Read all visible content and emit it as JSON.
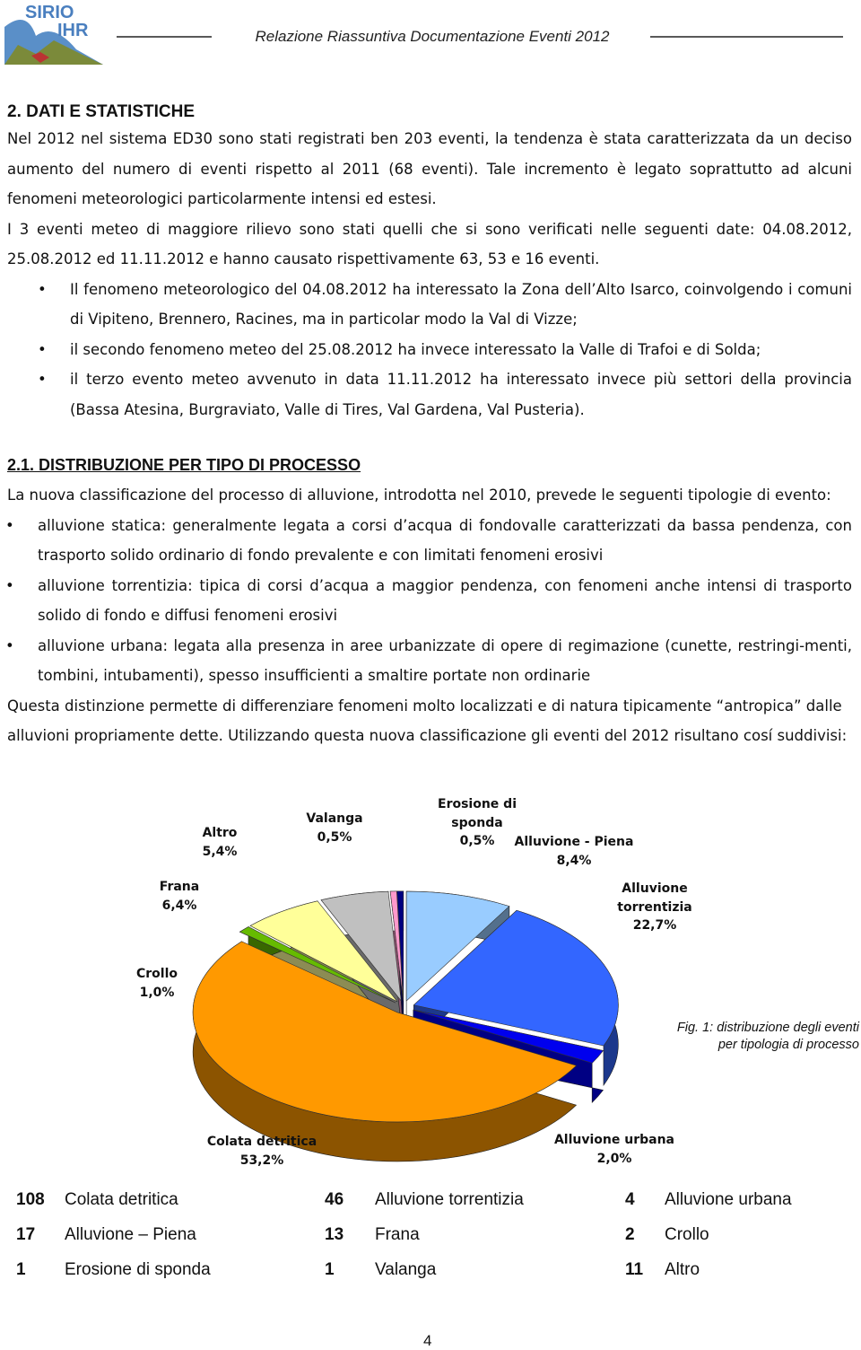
{
  "header": {
    "logo": [
      "SIRIO",
      "IHR"
    ],
    "title": "Relazione Riassuntiva Documentazione Eventi 2012"
  },
  "section": {
    "heading": "2. DATI E STATISTICHE",
    "paragraphs": [
      "Nel 2012 nel sistema ED30 sono stati registrati ben 203 eventi, la tendenza è stata caratterizzata da un deciso aumento del numero di eventi rispetto al 2011 (68 eventi). Tale incremento è legato soprattutto ad alcuni fenomeni meteorologici particolarmente intensi ed estesi.",
      "I 3 eventi meteo di maggiore rilievo sono stati quelli che si sono verificati nelle seguenti date: 04.08.2012, 25.08.2012 ed 11.11.2012 e hanno causato rispettivamente 63, 53 e 16 eventi."
    ],
    "bullets": [
      "Il fenomeno meteorologico del 04.08.2012 ha interessato la Zona dell’Alto Isarco, coinvolgendo i comuni di Vipiteno, Brennero, Racines, ma in particolar modo la Val di Vizze;",
      "il secondo fenomeno meteo del 25.08.2012 ha invece interessato la Valle di Trafoi e di Solda;",
      "il terzo evento meteo avvenuto in data 11.11.2012 ha interessato invece più settori della provincia (Bassa Atesina, Burgraviato, Valle di Tires, Val Gardena, Val Pusteria)."
    ]
  },
  "subsection": {
    "heading": "2.1. DISTRIBUZIONE PER TIPO DI PROCESSO",
    "intro": "La nuova classificazione del processo di alluvione, introdotta nel 2010, prevede le seguenti tipologie di evento:",
    "bullets": [
      "alluvione statica: generalmente legata a corsi d’acqua di fondovalle caratterizzati da bassa pendenza, con trasporto solido ordinario di fondo prevalente e con limitati fenomeni erosivi",
      "alluvione torrentizia: tipica di corsi d’acqua a maggior pendenza, con fenomeni anche intensi di trasporto solido di fondo e diffusi fenomeni erosivi",
      "alluvione urbana: legata alla presenza in aree urbanizzate di opere di regimazione (cunette, restringi-menti, tombini, intubamenti), spesso insufficienti a smaltire portate non ordinarie"
    ],
    "outro": "Questa distinzione permette di differenziare fenomeni molto localizzati e di natura tipicamente “antropica” dalle alluvioni propriamente dette. Utilizzando questa nuova classificazione gli eventi del 2012 risultano cosí suddivisi:"
  },
  "chart_data": {
    "type": "pie",
    "categories": [
      "Alluvione - Piena",
      "Alluvione torrentizia",
      "Alluvione urbana",
      "Colata detritica",
      "Crollo",
      "Frana",
      "Altro",
      "Valanga",
      "Erosione di sponda"
    ],
    "values": [
      8.4,
      22.7,
      2.0,
      53.2,
      1.0,
      6.4,
      5.4,
      0.5,
      0.5
    ],
    "value_labels": [
      "8,4%",
      "22,7%",
      "2,0%",
      "53,2%",
      "1,0%",
      "6,4%",
      "5,4%",
      "0,5%",
      "0,5%"
    ],
    "colors": [
      "#99ccff",
      "#3366ff",
      "#0000ee",
      "#ff9900",
      "#66bb00",
      "#ffff99",
      "#c0c0c0",
      "#ff99cc",
      "#000080"
    ]
  },
  "caption": [
    "Fig. 1: distribuzione degli eventi",
    "per tipologia di processo"
  ],
  "table": {
    "rows": [
      [
        108,
        "Colata detritica",
        46,
        "Alluvione torrentizia",
        4,
        "Alluvione urbana"
      ],
      [
        17,
        "Alluvione – Piena",
        13,
        "Frana",
        2,
        "Crollo"
      ],
      [
        1,
        "Erosione di sponda",
        1,
        "Valanga",
        11,
        "Altro"
      ]
    ]
  },
  "page_number": 4
}
